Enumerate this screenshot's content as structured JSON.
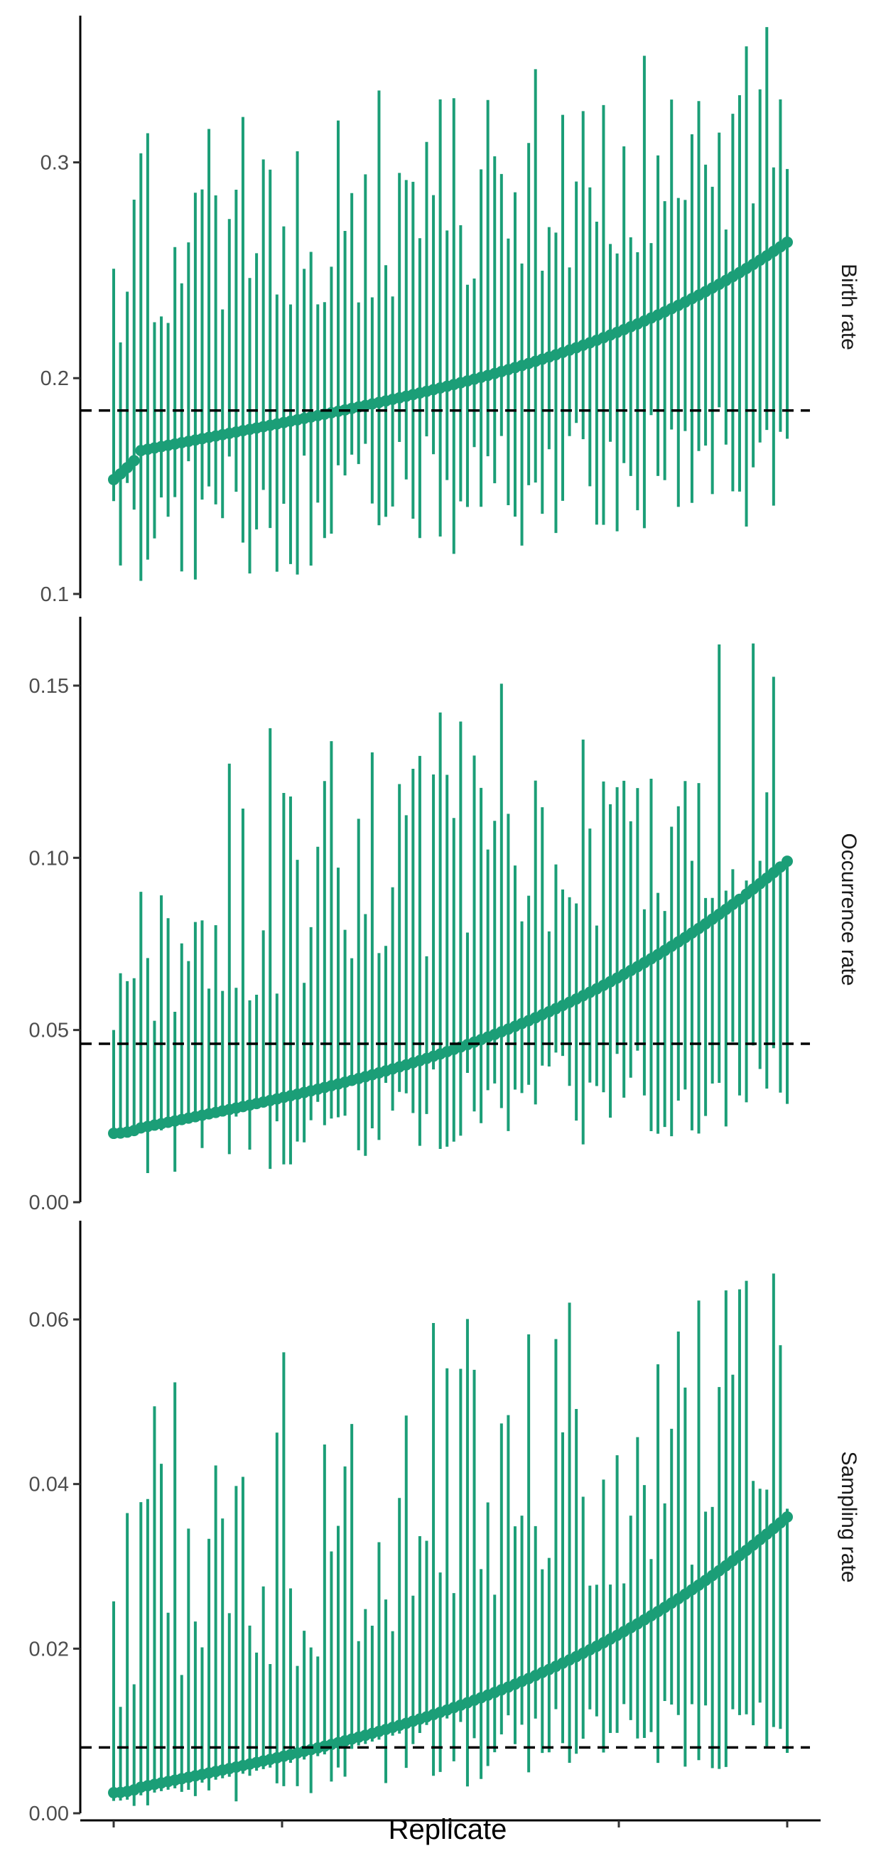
{
  "chart_data": {
    "type": "scatter",
    "xlabel": "Replicate",
    "n_replicates": 100,
    "panels": [
      {
        "label": "Birth rate",
        "reference_value": 0.185,
        "ylim": [
          0.098,
          0.368
        ],
        "yticks": [
          0.1,
          0.2,
          0.3
        ],
        "ytick_labels": [
          "0.1",
          "0.2",
          "0.3"
        ],
        "median_range": [
          0.153,
          0.263
        ],
        "lower_bound_range": [
          0.1,
          0.19
        ],
        "upper_bound_range": [
          0.215,
          0.368
        ]
      },
      {
        "label": "Occurrence rate",
        "reference_value": 0.046,
        "ylim": [
          0.0,
          0.17
        ],
        "yticks": [
          0.0,
          0.05,
          0.1,
          0.15
        ],
        "ytick_labels": [
          "0.00",
          "0.05",
          "0.10",
          "0.15"
        ],
        "median_range": [
          0.02,
          0.099
        ],
        "lower_bound_range": [
          0.006,
          0.05
        ],
        "upper_bound_range": [
          0.05,
          0.17
        ]
      },
      {
        "label": "Sampling rate",
        "reference_value": 0.008,
        "ylim": [
          0.0,
          0.072
        ],
        "yticks": [
          0.0,
          0.02,
          0.04,
          0.06
        ],
        "ytick_labels": [
          "0.00",
          "0.02",
          "0.04",
          "0.06"
        ],
        "median_range": [
          0.0025,
          0.036
        ],
        "lower_bound_range": [
          0.0005,
          0.015
        ],
        "upper_bound_range": [
          0.012,
          0.072
        ]
      }
    ],
    "series_color": "#1b9e77",
    "reference_line_style": "dashed black",
    "grid": false,
    "legend": "none"
  }
}
